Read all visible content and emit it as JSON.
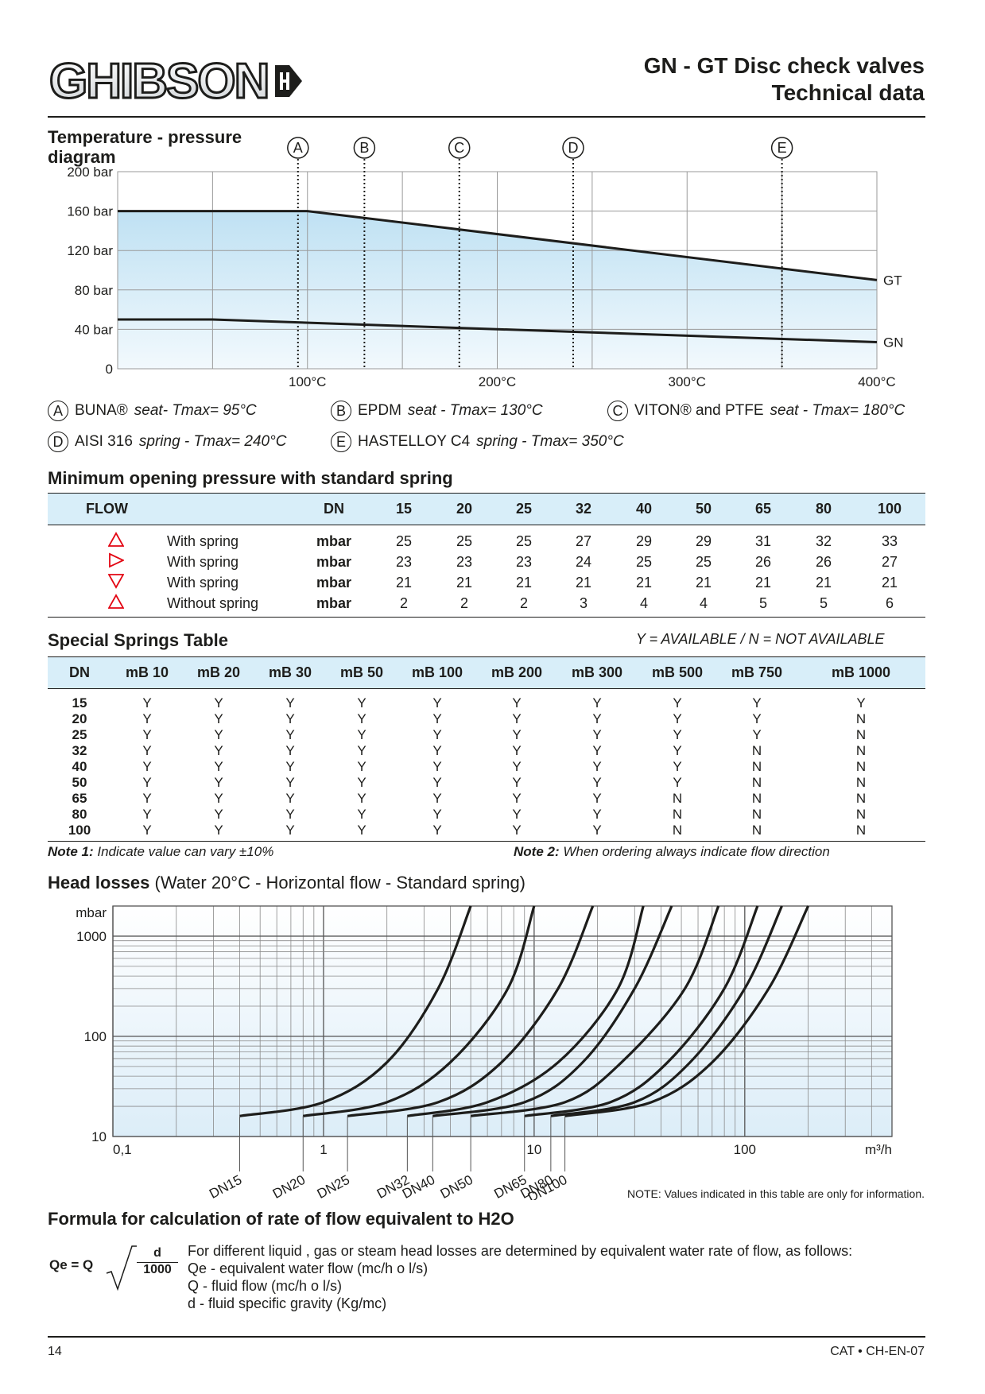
{
  "header": {
    "logo_text": "GHIBSON",
    "title_line1": "GN - GT Disc check valves",
    "title_line2": "Technical data"
  },
  "temp_pressure": {
    "heading_line1": "Temperature - pressure",
    "heading_line2": "diagram",
    "markers": [
      "A",
      "B",
      "C",
      "D",
      "E"
    ],
    "legend": [
      {
        "id": "A",
        "name": "BUNA®",
        "desc": "seat- Tmax= 95°C"
      },
      {
        "id": "B",
        "name": "EPDM",
        "desc": "seat - Tmax= 130°C"
      },
      {
        "id": "C",
        "name": "VITON® and PTFE",
        "desc": "seat - Tmax= 180°C"
      },
      {
        "id": "D",
        "name": "AISI 316",
        "desc": "spring - Tmax= 240°C"
      },
      {
        "id": "E",
        "name": "HASTELLOY C4",
        "desc": "spring - Tmax= 350°C"
      }
    ]
  },
  "min_pressure": {
    "heading": "Minimum opening pressure with standard spring",
    "col_flow": "FLOW",
    "col_dn": "DN",
    "dn": [
      "15",
      "20",
      "25",
      "32",
      "40",
      "50",
      "65",
      "80",
      "100"
    ],
    "rows": [
      {
        "icon": "triangle-up-icon",
        "label": "With spring",
        "unit": "mbar",
        "values": [
          "25",
          "25",
          "25",
          "27",
          "29",
          "29",
          "31",
          "32",
          "33"
        ]
      },
      {
        "icon": "triangle-right-icon",
        "label": "With spring",
        "unit": "mbar",
        "values": [
          "23",
          "23",
          "23",
          "24",
          "25",
          "25",
          "26",
          "26",
          "27"
        ]
      },
      {
        "icon": "triangle-down-icon",
        "label": "With spring",
        "unit": "mbar",
        "values": [
          "21",
          "21",
          "21",
          "21",
          "21",
          "21",
          "21",
          "21",
          "21"
        ]
      },
      {
        "icon": "triangle-up-icon",
        "label": "Without spring",
        "unit": "mbar",
        "values": [
          "2",
          "2",
          "2",
          "3",
          "4",
          "4",
          "5",
          "5",
          "6"
        ]
      }
    ]
  },
  "special_springs": {
    "heading": "Special Springs Table",
    "availability_note": "Y = AVAILABLE / N = NOT AVAILABLE",
    "columns": [
      "DN",
      "mB 10",
      "mB 20",
      "mB 30",
      "mB 50",
      "mB 100",
      "mB 200",
      "mB 300",
      "mB 500",
      "mB 750",
      "mB 1000"
    ],
    "rows": [
      [
        "15",
        "Y",
        "Y",
        "Y",
        "Y",
        "Y",
        "Y",
        "Y",
        "Y",
        "Y",
        "Y"
      ],
      [
        "20",
        "Y",
        "Y",
        "Y",
        "Y",
        "Y",
        "Y",
        "Y",
        "Y",
        "Y",
        "N"
      ],
      [
        "25",
        "Y",
        "Y",
        "Y",
        "Y",
        "Y",
        "Y",
        "Y",
        "Y",
        "Y",
        "N"
      ],
      [
        "32",
        "Y",
        "Y",
        "Y",
        "Y",
        "Y",
        "Y",
        "Y",
        "Y",
        "N",
        "N"
      ],
      [
        "40",
        "Y",
        "Y",
        "Y",
        "Y",
        "Y",
        "Y",
        "Y",
        "Y",
        "N",
        "N"
      ],
      [
        "50",
        "Y",
        "Y",
        "Y",
        "Y",
        "Y",
        "Y",
        "Y",
        "Y",
        "N",
        "N"
      ],
      [
        "65",
        "Y",
        "Y",
        "Y",
        "Y",
        "Y",
        "Y",
        "Y",
        "N",
        "N",
        "N"
      ],
      [
        "80",
        "Y",
        "Y",
        "Y",
        "Y",
        "Y",
        "Y",
        "Y",
        "N",
        "N",
        "N"
      ],
      [
        "100",
        "Y",
        "Y",
        "Y",
        "Y",
        "Y",
        "Y",
        "Y",
        "N",
        "N",
        "N"
      ]
    ],
    "note1_label": "Note 1:",
    "note1_text": "Indicate value can vary ±10%",
    "note2_label": "Note 2:",
    "note2_text": "When ordering always indicate flow direction"
  },
  "head_losses": {
    "heading_bold": "Head losses",
    "heading_rest": "(Water 20°C - Horizontal flow - Standard spring)",
    "note": "NOTE: Values  indicated in this table are only for information."
  },
  "formula": {
    "heading": "Formula for calculation of rate of flow equivalent to H2O",
    "lhs": "Qe = Q",
    "num": "d",
    "den": "1000",
    "lines": [
      "For different liquid , gas or steam head losses are determined by equivalent water rate of flow, as follows:",
      "Qe - equivalent water flow  (mc/h o l/s)",
      "Q   - fluid flow (mc/h o l/s)",
      "d   - fluid specific gravity (Kg/mc)"
    ]
  },
  "footer": {
    "page": "14",
    "code": "CAT • CH-EN-07"
  },
  "chart_data": [
    {
      "type": "line",
      "title": "Temperature - pressure diagram",
      "xlabel": "",
      "ylabel": "",
      "x_ticks": [
        "100°C",
        "200°C",
        "300°C",
        "400°C"
      ],
      "y_ticks": [
        "0",
        "40 bar",
        "80 bar",
        "120 bar",
        "160 bar",
        "200 bar"
      ],
      "xlim": [
        0,
        400
      ],
      "ylim": [
        0,
        200
      ],
      "grid": true,
      "series": [
        {
          "name": "GT",
          "points": [
            [
              0,
              160
            ],
            [
              100,
              160
            ],
            [
              400,
              90
            ]
          ]
        },
        {
          "name": "GN",
          "points": [
            [
              0,
              50
            ],
            [
              50,
              50
            ],
            [
              400,
              27
            ]
          ]
        }
      ],
      "markers": [
        {
          "label": "A",
          "x": 95
        },
        {
          "label": "B",
          "x": 130
        },
        {
          "label": "C",
          "x": 180
        },
        {
          "label": "D",
          "x": 240
        },
        {
          "label": "E",
          "x": 350
        }
      ]
    },
    {
      "type": "line",
      "title": "Head losses",
      "xlabel": "m³/h",
      "ylabel": "mbar",
      "x_scale": "log",
      "y_scale": "log",
      "x_ticks": [
        "0,1",
        "1",
        "10",
        "100"
      ],
      "y_ticks": [
        "10",
        "100",
        "1000"
      ],
      "xlim": [
        0.1,
        500
      ],
      "ylim": [
        10,
        2000
      ],
      "grid": true,
      "series": [
        {
          "name": "DN15",
          "points": [
            [
              0.4,
              16
            ],
            [
              1,
              22
            ],
            [
              2,
              55
            ],
            [
              3.5,
              300
            ],
            [
              5,
              2000
            ]
          ]
        },
        {
          "name": "DN20",
          "points": [
            [
              0.8,
              16
            ],
            [
              2,
              22
            ],
            [
              4,
              55
            ],
            [
              7.5,
              300
            ],
            [
              10,
              2000
            ]
          ]
        },
        {
          "name": "DN25",
          "points": [
            [
              1.3,
              16
            ],
            [
              3.5,
              22
            ],
            [
              7,
              55
            ],
            [
              13,
              300
            ],
            [
              19,
              2000
            ]
          ]
        },
        {
          "name": "DN32",
          "points": [
            [
              2.5,
              16
            ],
            [
              6,
              22
            ],
            [
              13,
              55
            ],
            [
              25,
              300
            ],
            [
              33,
              2000
            ]
          ]
        },
        {
          "name": "DN40",
          "points": [
            [
              3.3,
              16
            ],
            [
              9,
              22
            ],
            [
              17,
              55
            ],
            [
              30,
              300
            ],
            [
              45,
              2000
            ]
          ]
        },
        {
          "name": "DN50",
          "points": [
            [
              5,
              16
            ],
            [
              14,
              22
            ],
            [
              26,
              55
            ],
            [
              52,
              300
            ],
            [
              75,
              2000
            ]
          ]
        },
        {
          "name": "DN65",
          "points": [
            [
              9,
              16
            ],
            [
              23,
              22
            ],
            [
              43,
              55
            ],
            [
              80,
              300
            ],
            [
              115,
              2000
            ]
          ]
        },
        {
          "name": "DN80",
          "points": [
            [
              12,
              16
            ],
            [
              30,
              22
            ],
            [
              55,
              55
            ],
            [
              100,
              300
            ],
            [
              150,
              2000
            ]
          ]
        },
        {
          "name": "DN100",
          "points": [
            [
              14,
              16
            ],
            [
              36,
              22
            ],
            [
              70,
              55
            ],
            [
              130,
              300
            ],
            [
              200,
              2000
            ]
          ]
        }
      ],
      "line_labels": [
        "DN15",
        "DN20",
        "DN25",
        "DN32",
        "DN40",
        "DN50",
        "DN65",
        "DN80",
        "DN100"
      ]
    }
  ]
}
